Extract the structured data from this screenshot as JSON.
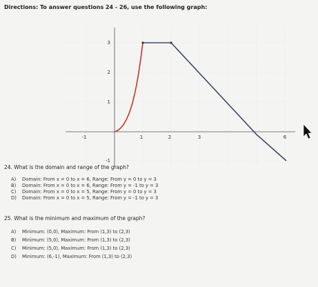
{
  "header": {
    "title": "Directions: To answer questions 24 - 26, use the following graph:"
  },
  "graph": {
    "x_tick_labels": [
      "-1",
      "1",
      "2",
      "3",
      "6"
    ],
    "y_tick_labels": [
      "3",
      "2",
      "1",
      "-1"
    ]
  },
  "questions": [
    {
      "text": "24. What is the domain and range of the graph?",
      "options": [
        {
          "letter": "A)",
          "text": "Domain: From x = 0 to x = 6, Range: From y = 0 to y = 3"
        },
        {
          "letter": "B)",
          "text": "Domain: From x = 0 to x = 6, Range: From y = -1 to y = 3"
        },
        {
          "letter": "C)",
          "text": "Domain: From x = 0 to x = 5, Range: From y = 0 to y = 3"
        },
        {
          "letter": "D)",
          "text": "Domain: From x = 0 to x = 5, Range: From y = -1 to y = 3"
        }
      ]
    },
    {
      "text": "25. What is the minimum and maximum of the graph?",
      "options": [
        {
          "letter": "A)",
          "text": "Minimum: (0,0), Maximum: From (1,3) to (2,3)"
        },
        {
          "letter": "B)",
          "text": "Minimum: (5,0), Maximum: From (1,3) to (2,3)"
        },
        {
          "letter": "C)",
          "text": "Minimum: (5,0), Maximum: From (1,3) to (2,3)"
        },
        {
          "letter": "D)",
          "text": "Minimum: (6,-1), Maximum: From (1,3) to (2,3)"
        }
      ]
    }
  ]
}
